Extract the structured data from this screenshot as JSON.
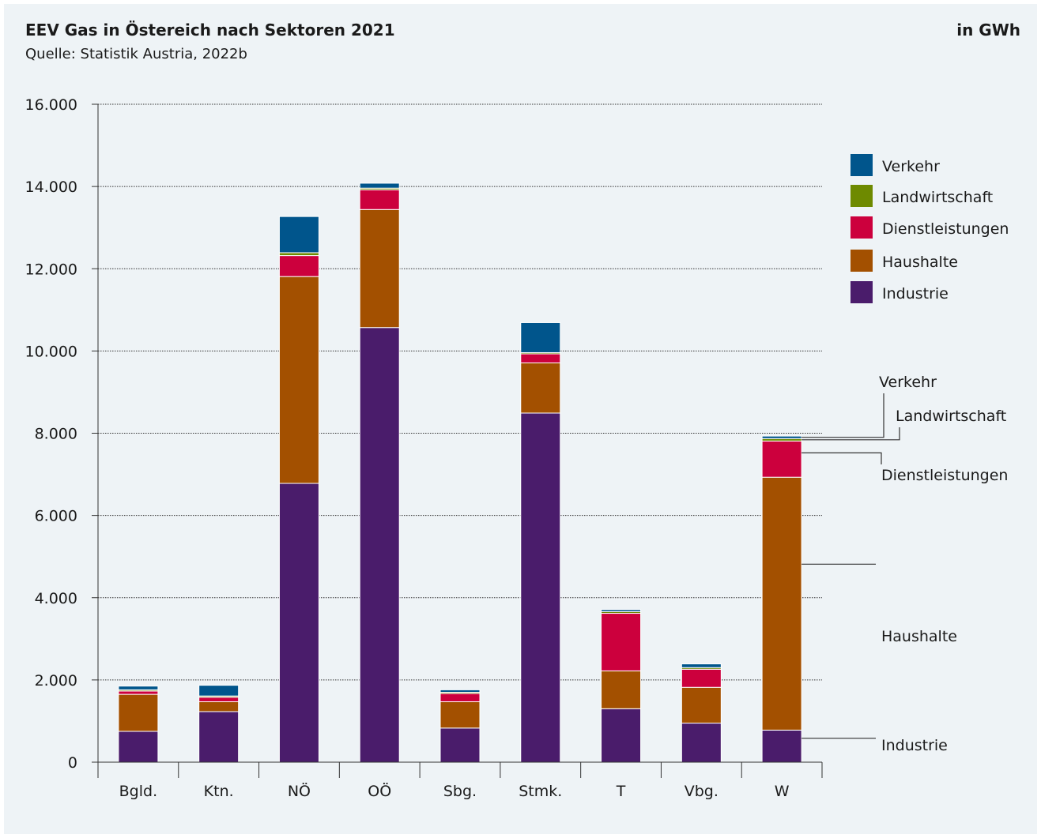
{
  "header": {
    "title": "EEV Gas in Östereich nach Sektoren 2021",
    "source": "Quelle: Statistik Austria, 2022b",
    "unit": "in GWh"
  },
  "chart_data": {
    "type": "bar",
    "stacked": true,
    "title": "EEV Gas in Östereich nach Sektoren 2021",
    "subtitle": "Quelle: Statistik Austria, 2022b",
    "unit": "in GWh",
    "xlabel": "",
    "ylabel": "",
    "ylim": [
      0,
      16000
    ],
    "yticks": [
      0,
      2000,
      4000,
      6000,
      8000,
      10000,
      12000,
      14000,
      16000
    ],
    "ytick_labels": [
      "0",
      "2.000",
      "4.000",
      "6.000",
      "8.000",
      "10.000",
      "12.000",
      "14.000",
      "16.000"
    ],
    "grid": true,
    "legend_position": "right",
    "categories": [
      "Bgld.",
      "Ktn.",
      "NÖ",
      "OÖ",
      "Sbg.",
      "Stmk.",
      "T",
      "Vbg.",
      "W"
    ],
    "series": [
      {
        "name": "Industrie",
        "color": "#4a1c6b",
        "values": [
          750,
          1230,
          6780,
          10570,
          830,
          8490,
          1300,
          950,
          780
        ]
      },
      {
        "name": "Haushalte",
        "color": "#a35000",
        "values": [
          900,
          240,
          5030,
          2870,
          640,
          1220,
          920,
          870,
          6150
        ]
      },
      {
        "name": "Dienstleistungen",
        "color": "#cc003d",
        "values": [
          80,
          110,
          510,
          480,
          200,
          220,
          1400,
          440,
          880
        ]
      },
      {
        "name": "Landwirtschaft",
        "color": "#6e8a00",
        "values": [
          30,
          30,
          70,
          40,
          30,
          30,
          40,
          40,
          60
        ]
      },
      {
        "name": "Verkehr",
        "color": "#00558c",
        "values": [
          90,
          260,
          880,
          120,
          60,
          730,
          50,
          90,
          60
        ]
      }
    ],
    "annotations": [
      "Verkehr",
      "Landwirtschaft",
      "Dienstleistungen",
      "Haushalte",
      "Industrie"
    ],
    "annotation_category": "W"
  }
}
